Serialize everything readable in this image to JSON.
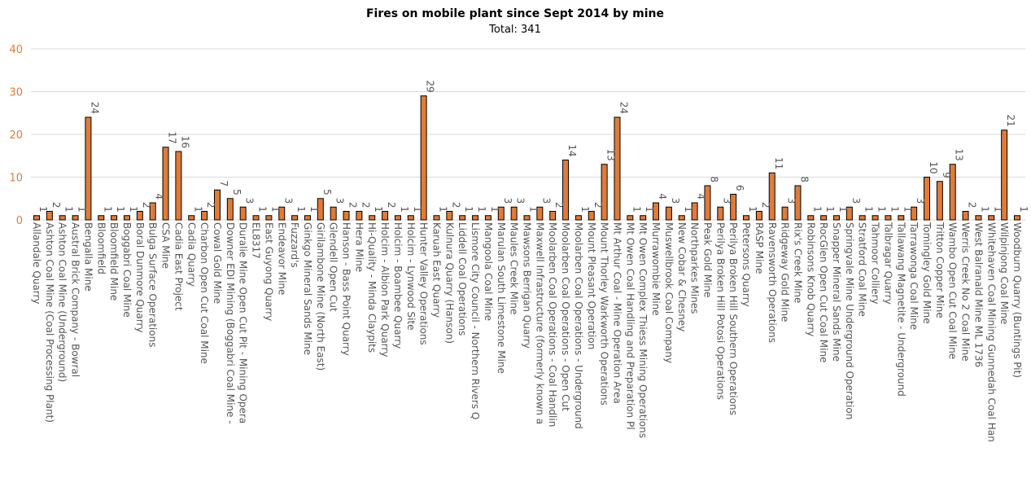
{
  "chart_data": {
    "type": "bar",
    "title": "Fires on mobile plant since Sept 2014 by mine",
    "subtitle": "Total: 341",
    "ylim": [
      0,
      40
    ],
    "yticks": [
      0,
      10,
      20,
      30,
      40
    ],
    "grid": true,
    "colors": {
      "bar": "#e07b39",
      "bar_stroke": "#000000",
      "ytick": "#e07b39",
      "grid": "#d9d9d9"
    },
    "categories": [
      "Allandale Quarry",
      "Ashton Coal Mine (Coal Processing Plant)",
      "Ashton Coal Mine (Underground)",
      "Austral Brick Company - Bowral",
      "Bengalla Mine",
      "Bloomfield",
      "Bloomfield Mine",
      "Boggabri Coal Mine",
      "Boral Dunmore Quarry",
      "Bulga Surface Operations",
      "CSA Mine",
      "Cadia East Project",
      "Cadia Quarry",
      "Charbon Open Cut Coal Mine",
      "Cowal Gold Mine",
      "Downer EDI Mining (Boggabri Coal Mine -",
      "Duralie Mine Open Cut Pit - Mining Opera",
      "EL8317",
      "East Guyong Quarry",
      "Endeavor Mine",
      "Fuzzard's",
      "Ginkgo Mineral Sands Mine",
      "Girilambone Mine (North East)",
      "Glendell Open Cut",
      "Hanson - Bass Point Quarry",
      "Hera Mine",
      "Hi-Quality - Minda Claypits",
      "Holcim - Albion Park Quarry",
      "Holcim - Boambee Quarry",
      "Holcim - Lynwood Site",
      "Hunter Valley Operations",
      "Karuah East Quarry",
      "Kulnura Quarry (Hanson)",
      "Liddell Coal Operations",
      "Lismore City Council - Northern Rivers Q",
      "Mangoola Coal Mine",
      "Marulan South Limestone Mine",
      "Maules Creek Mine",
      "Mawsons Berrigan Quarry",
      "Maxwell Infrastructure (formerly known a",
      "Moolarben Coal Operations - Coal Handlin",
      "Moolarben Coal Operations - Open Cut",
      "Moolarben Coal Operations - Underground",
      "Mount Pleasant Operation",
      "Mount Thorley Warkworth Operations",
      "Mt Arthur Coal - Mine Operation Area",
      "Mt Owen Coal Handling and Preparation Pl",
      "Mt Owen Complex Thiess Mining Operations",
      "Murrawombie Mine",
      "Muswellbrook Coal Company",
      "New Cobar & Chesney",
      "Northparkes Mines",
      "Peak Gold Mine",
      "Perilya Broken Hill Potosi Operations",
      "Perilya Broken Hill Southern Operations",
      "Petersons Quarry",
      "RASP Mine",
      "Ravensworth Operations",
      "Ridgeway Gold Mine",
      "Rix's Creek Mine",
      "Robinsons Knob Quarry",
      "RocGlen Open Cut Coal Mine",
      "Snapper Mineral Sands Mine",
      "Springvale Mine Underground Operation",
      "Stratford Coal Mine",
      "Tahmoor Colliery",
      "Talbragar Quarry",
      "Tallawang Magnetite - Underground",
      "Tarrawonga Coal Mine",
      "Tomingley Gold Mine",
      "Tritton Copper Mine",
      "Wambo Open Cut Coal Mine",
      "Werris Creek No 2 Coal Mine",
      "West Balranald Mine ML 1736",
      "Whitehaven Coal Mining Gunnedah Coal Han",
      "Wilpinjong Coal Mine",
      "Woodburn Quarry (Buntings Pit)"
    ],
    "values": [
      1,
      2,
      1,
      1,
      24,
      1,
      1,
      1,
      2,
      4,
      17,
      16,
      1,
      2,
      7,
      5,
      3,
      1,
      1,
      3,
      1,
      1,
      5,
      3,
      2,
      2,
      1,
      2,
      1,
      1,
      29,
      1,
      2,
      1,
      1,
      1,
      3,
      3,
      1,
      3,
      2,
      14,
      1,
      2,
      13,
      24,
      1,
      1,
      4,
      3,
      1,
      4,
      8,
      3,
      6,
      1,
      2,
      11,
      3,
      8,
      1,
      1,
      1,
      3,
      1,
      1,
      1,
      1,
      3,
      10,
      9,
      13,
      2,
      1,
      1,
      21,
      1
    ]
  }
}
